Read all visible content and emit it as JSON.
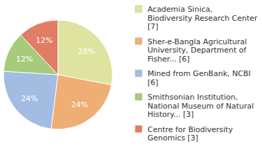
{
  "chart_data": {
    "type": "pie",
    "categories": [
      "Academia Sinica, Biodiversity Research Center [7]",
      "Sher-e-Bangla Agricultural University, Department of Fisher... [6]",
      "Mined from GenBank, NCBI [6]",
      "Smithsonian Institution, National Museum of Natural History... [3]",
      "Centre for Biodiversity Genomics [3]"
    ],
    "values": [
      28,
      24,
      24,
      12,
      12
    ],
    "value_labels": [
      "28%",
      "24%",
      "24%",
      "12%",
      "12%"
    ],
    "colors": [
      "#dfe3a0",
      "#efae74",
      "#a3bce2",
      "#a7cb7c",
      "#e07d64"
    ],
    "data_labels": true,
    "legend": "right"
  }
}
